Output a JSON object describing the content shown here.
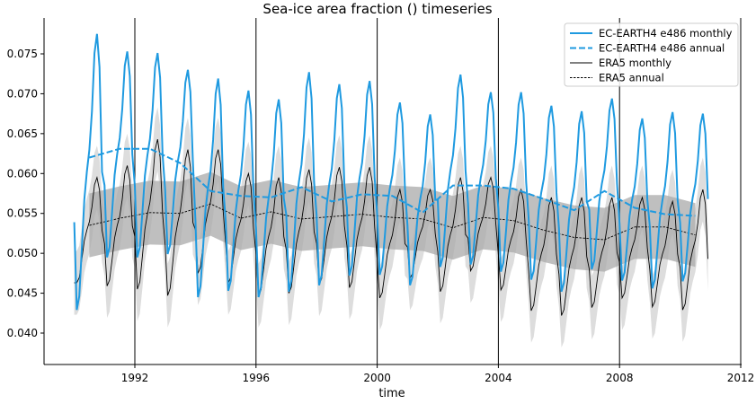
{
  "chart_data": {
    "type": "line",
    "title": "Sea-ice area fraction () timeseries",
    "xlabel": "time",
    "ylabel": "",
    "xlim": [
      1988.9,
      2012
    ],
    "ylim": [
      0.0375,
      0.0797
    ],
    "x_ticks": [
      "1992",
      "1996",
      "2000",
      "2004",
      "2008",
      "2012"
    ],
    "y_ticks": [
      "0.040",
      "0.045",
      "0.050",
      "0.055",
      "0.060",
      "0.065",
      "0.070",
      "0.075"
    ],
    "vertical_lines_at": [
      1992,
      1996,
      2000,
      2004,
      2008,
      2012
    ],
    "legend_position": "top-right",
    "years": [
      1990,
      1991,
      1992,
      1993,
      1994,
      1995,
      1996,
      1997,
      1998,
      1999,
      2000,
      2001,
      2002,
      2003,
      2004,
      2005,
      2006,
      2007,
      2008,
      2009,
      2010
    ],
    "series": [
      {
        "name": "EC-EARTH4 e486 monthly",
        "style": "solid",
        "color": "#1f9ae0",
        "first_value": 0.0539,
        "last_value": 0.0568,
        "yearly_max": [
          0.0775,
          0.0753,
          0.0751,
          0.073,
          0.0719,
          0.0704,
          0.0693,
          0.0727,
          0.0712,
          0.0716,
          0.0689,
          0.0674,
          0.0724,
          0.0702,
          0.0702,
          0.0685,
          0.0678,
          0.0694,
          0.0669,
          0.0677,
          0.0675
        ],
        "yearly_min": [
          0.0429,
          0.0495,
          0.0495,
          0.0499,
          0.0445,
          0.0453,
          0.0445,
          0.0452,
          0.046,
          0.0472,
          0.0473,
          0.046,
          0.0483,
          0.0486,
          0.0477,
          0.0467,
          0.0452,
          0.048,
          0.0466,
          0.0456,
          0.0465
        ]
      },
      {
        "name": "EC-EARTH4 e486 annual",
        "style": "dashed",
        "color": "#1f9ae0",
        "values": [
          0.062,
          0.0631,
          0.0631,
          0.0613,
          0.0578,
          0.0572,
          0.057,
          0.0583,
          0.0565,
          0.0574,
          0.0572,
          0.0551,
          0.0585,
          0.0585,
          0.0581,
          0.0568,
          0.0554,
          0.0578,
          0.0557,
          0.0549,
          0.0547
        ]
      },
      {
        "name": "ERA5 monthly",
        "style": "solid",
        "color": "#000000",
        "first_value": 0.0463,
        "last_value": 0.0493,
        "yearly_max": [
          0.0595,
          0.061,
          0.0643,
          0.063,
          0.063,
          0.06,
          0.0595,
          0.0605,
          0.0608,
          0.0608,
          0.058,
          0.058,
          0.0595,
          0.0595,
          0.058,
          0.057,
          0.057,
          0.057,
          0.057,
          0.0565,
          0.058
        ],
        "yearly_min": [
          0.0463,
          0.0459,
          0.0455,
          0.0447,
          0.0475,
          0.0463,
          0.0447,
          0.045,
          0.0461,
          0.0457,
          0.0444,
          0.0469,
          0.0452,
          0.0478,
          0.0454,
          0.0428,
          0.0422,
          0.0432,
          0.0444,
          0.0433,
          0.0429
        ]
      },
      {
        "name": "ERA5 annual",
        "style": "dotted",
        "color": "#000000",
        "values": [
          0.0535,
          0.0544,
          0.0551,
          0.055,
          0.0562,
          0.0544,
          0.0552,
          0.0543,
          0.0546,
          0.0549,
          0.0545,
          0.0543,
          0.0532,
          0.0545,
          0.0541,
          0.0529,
          0.052,
          0.0517,
          0.0533,
          0.0533,
          0.0523
        ]
      }
    ],
    "bands": [
      {
        "around": "ERA5 monthly",
        "half_width": 0.004,
        "color": "#dddddd"
      },
      {
        "around": "ERA5 annual",
        "half_width": 0.004,
        "color": "#aaaaaa"
      }
    ]
  }
}
